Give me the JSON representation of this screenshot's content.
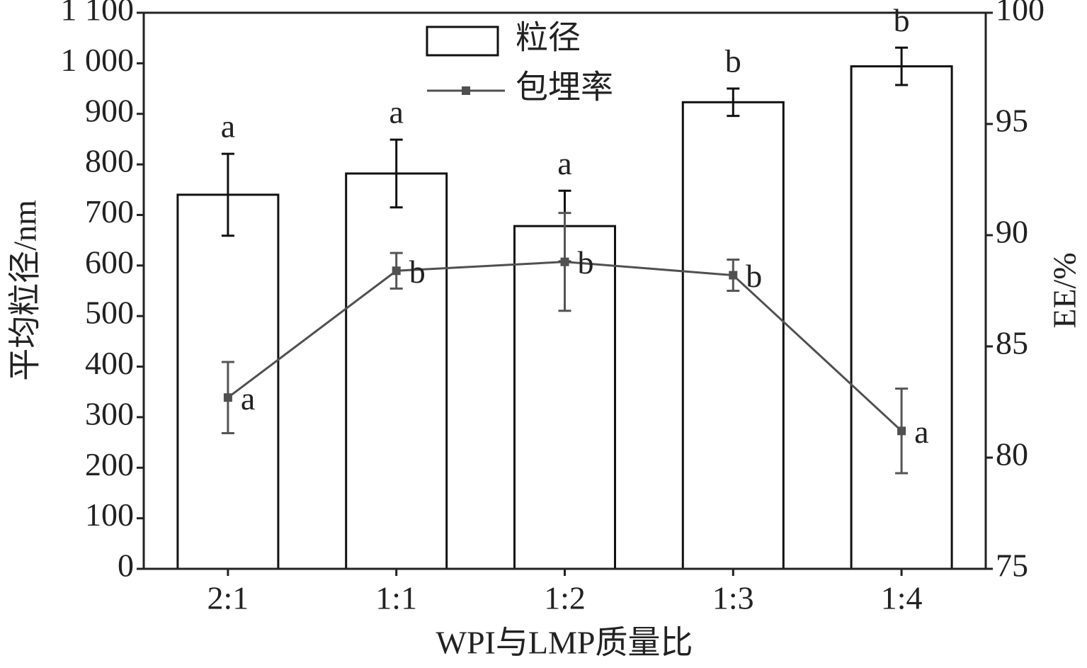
{
  "chart_data": {
    "type": "bar",
    "x_label": "WPI与LMP质量比",
    "y_label": "平均粒径/nm",
    "y2_label": "EE/%",
    "categories": [
      "2:1",
      "1:1",
      "1:2",
      "1:3",
      "1:4"
    ],
    "series": [
      {
        "name": "粒径",
        "type": "bar",
        "color": "#ffffff",
        "values": [
          740,
          782,
          678,
          923,
          994
        ],
        "errors": [
          81,
          67,
          70,
          27,
          37
        ],
        "letters": [
          "a",
          "a",
          "a",
          "b",
          "b"
        ]
      },
      {
        "name": "包埋率",
        "type": "line",
        "axis": "y2",
        "color": "#505050",
        "values": [
          82.7,
          88.4,
          88.8,
          88.2,
          81.2
        ],
        "errors": [
          1.6,
          0.8,
          2.2,
          0.7,
          1.9
        ],
        "letters": [
          "a",
          "b",
          "b",
          "b",
          "a"
        ]
      }
    ],
    "ylim": [
      0,
      1100
    ],
    "yticks": [
      0,
      100,
      200,
      300,
      400,
      500,
      600,
      700,
      800,
      900,
      {
        "value": 1000,
        "label": "1 000"
      },
      {
        "value": 1100,
        "label": "1 100"
      }
    ],
    "y2lim": [
      75,
      100
    ],
    "y2ticks": [
      75,
      80,
      85,
      90,
      95,
      100
    ]
  }
}
